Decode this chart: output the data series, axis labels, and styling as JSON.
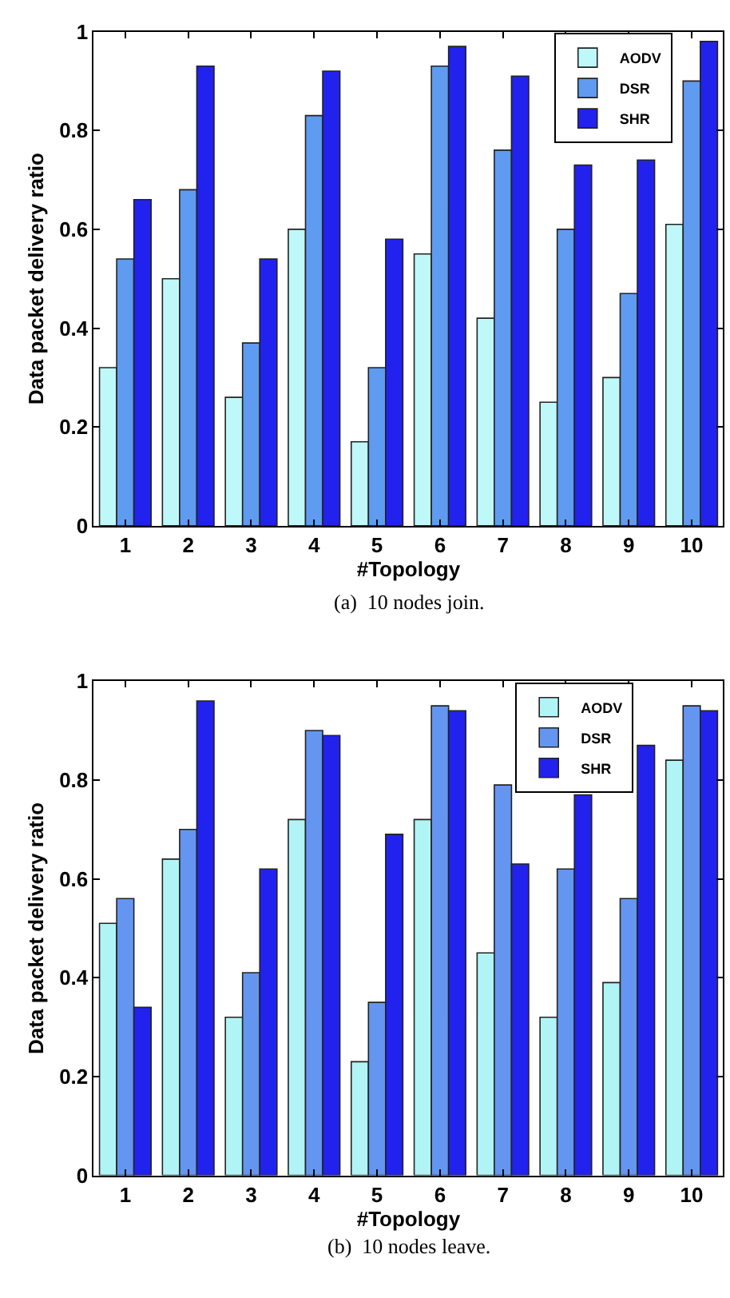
{
  "chart_data": [
    {
      "type": "bar",
      "xlabel": "#Topology",
      "ylabel": "Data packet delivery ratio",
      "categories": [
        "1",
        "2",
        "3",
        "4",
        "5",
        "6",
        "7",
        "8",
        "9",
        "10"
      ],
      "ylim": [
        0,
        1
      ],
      "yticks": [
        0,
        0.2,
        0.4,
        0.6,
        0.8,
        1
      ],
      "legend": "top right",
      "annotations": [
        "(a)  10 nodes join."
      ],
      "series": [
        {
          "name": "AODV",
          "color": "#bff8f8",
          "values": [
            0.32,
            0.5,
            0.26,
            0.6,
            0.17,
            0.55,
            0.42,
            0.25,
            0.3,
            0.61
          ]
        },
        {
          "name": "DSR",
          "color": "#5f9bf0",
          "values": [
            0.54,
            0.68,
            0.37,
            0.83,
            0.32,
            0.93,
            0.76,
            0.6,
            0.47,
            0.9
          ]
        },
        {
          "name": "SHR",
          "color": "#2222ee",
          "values": [
            0.66,
            0.93,
            0.54,
            0.92,
            0.58,
            0.97,
            0.91,
            0.73,
            0.74,
            0.98
          ]
        }
      ]
    },
    {
      "type": "bar",
      "xlabel": "#Topology",
      "ylabel": "Data packet delivery ratio",
      "categories": [
        "1",
        "2",
        "3",
        "4",
        "5",
        "6",
        "7",
        "8",
        "9",
        "10"
      ],
      "ylim": [
        0,
        1
      ],
      "yticks": [
        0,
        0.2,
        0.4,
        0.6,
        0.8,
        1
      ],
      "legend": "top right",
      "annotations": [
        "(b)  10 nodes leave."
      ],
      "series": [
        {
          "name": "AODV",
          "color": "#b0f4f6",
          "values": [
            0.51,
            0.64,
            0.32,
            0.72,
            0.23,
            0.72,
            0.45,
            0.32,
            0.39,
            0.84
          ]
        },
        {
          "name": "DSR",
          "color": "#6495f0",
          "values": [
            0.56,
            0.7,
            0.41,
            0.9,
            0.35,
            0.95,
            0.79,
            0.62,
            0.56,
            0.95
          ]
        },
        {
          "name": "SHR",
          "color": "#2222ee",
          "values": [
            0.34,
            0.96,
            0.62,
            0.89,
            0.69,
            0.94,
            0.63,
            0.77,
            0.87,
            0.94
          ]
        }
      ]
    }
  ]
}
